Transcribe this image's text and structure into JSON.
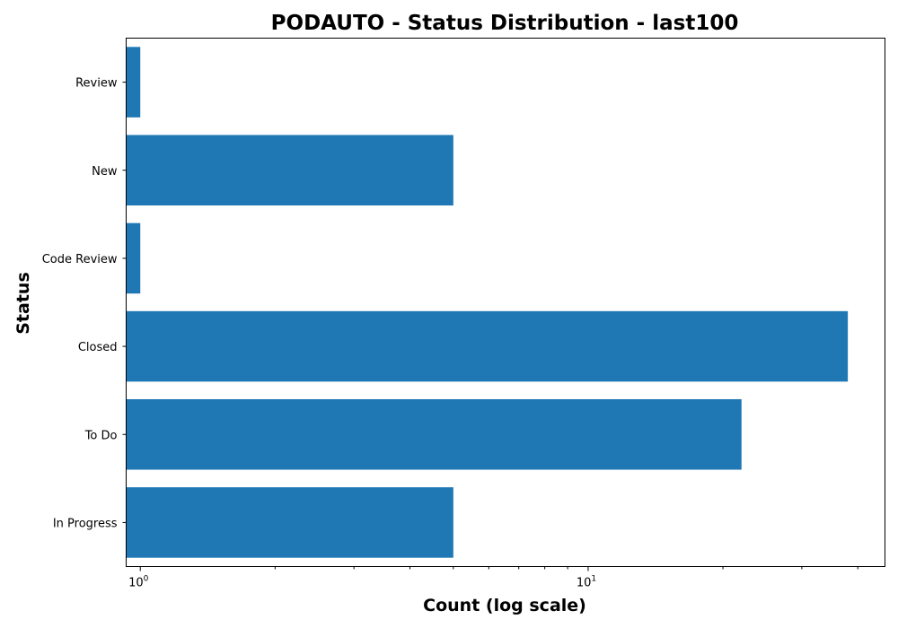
{
  "chart_data": {
    "type": "bar",
    "orientation": "horizontal",
    "title": "PODAUTO - Status Distribution - last100",
    "xlabel": "Count (log scale)",
    "ylabel": "Status",
    "x_scale": "log",
    "xlim": [
      0.93,
      46
    ],
    "categories": [
      "In Progress",
      "To Do",
      "Closed",
      "Code Review",
      "New",
      "Review"
    ],
    "values": [
      5,
      22,
      38,
      1,
      5,
      1
    ],
    "bar_color": "#1f77b4",
    "x_major_ticks": [
      {
        "value": 1,
        "base": "10",
        "exp": "0"
      },
      {
        "value": 10,
        "base": "10",
        "exp": "1"
      }
    ],
    "grid": false,
    "legend": "none"
  }
}
